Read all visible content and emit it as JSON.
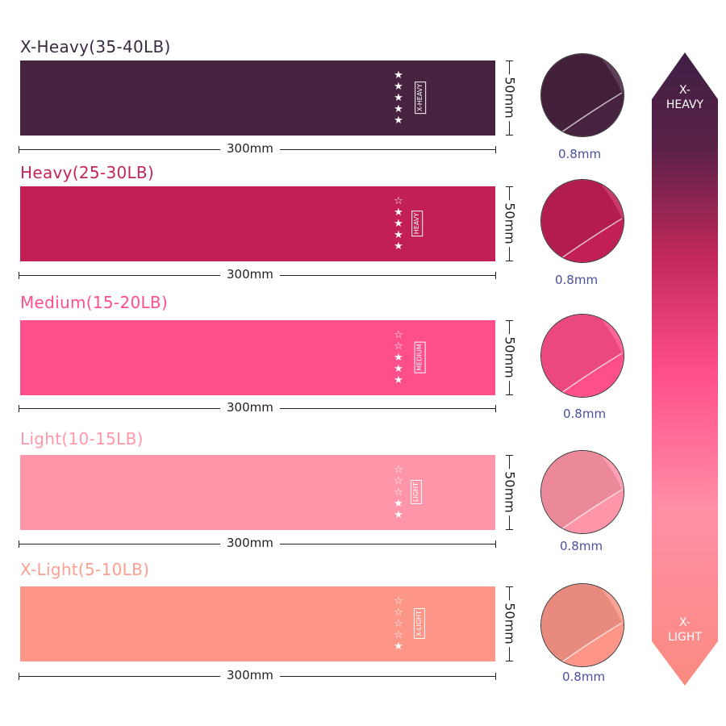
{
  "bands": [
    {
      "title": "X-Heavy(35-40LB)",
      "tag": "X-HEAVY",
      "stars_filled": 5,
      "stars_total": 5,
      "length": "300mm",
      "width": "50mm",
      "thickness": "0.8mm",
      "color": "#48233f",
      "title_color": "#3b2b40"
    },
    {
      "title": "Heavy(25-30LB)",
      "tag": "HEAVY",
      "stars_filled": 4,
      "stars_total": 5,
      "length": "300mm",
      "width": "50mm",
      "thickness": "0.8mm",
      "color": "#c21f55",
      "title_color": "#c2255a"
    },
    {
      "title": "Medium(15-20LB)",
      "tag": "MEDIUM",
      "stars_filled": 3,
      "stars_total": 5,
      "length": "300mm",
      "width": "50mm",
      "thickness": "0.8mm",
      "color": "#ff4f8b",
      "title_color": "#ff4f8b"
    },
    {
      "title": "Light(10-15LB)",
      "tag": "LIGHT",
      "stars_filled": 2,
      "stars_total": 5,
      "length": "300mm",
      "width": "50mm",
      "thickness": "0.8mm",
      "color": "#ff95a8",
      "title_color": "#ff97a8"
    },
    {
      "title": "X-Light(5-10LB)",
      "tag": "X-LIGHT",
      "stars_filled": 1,
      "stars_total": 5,
      "length": "300mm",
      "width": "50mm",
      "thickness": "0.8mm",
      "color": "#fd9689",
      "title_color": "#fba090"
    }
  ],
  "scale": {
    "top_label_1": "X-",
    "top_label_2": "HEAVY",
    "bottom_label_1": "X-",
    "bottom_label_2": "LIGHT"
  }
}
